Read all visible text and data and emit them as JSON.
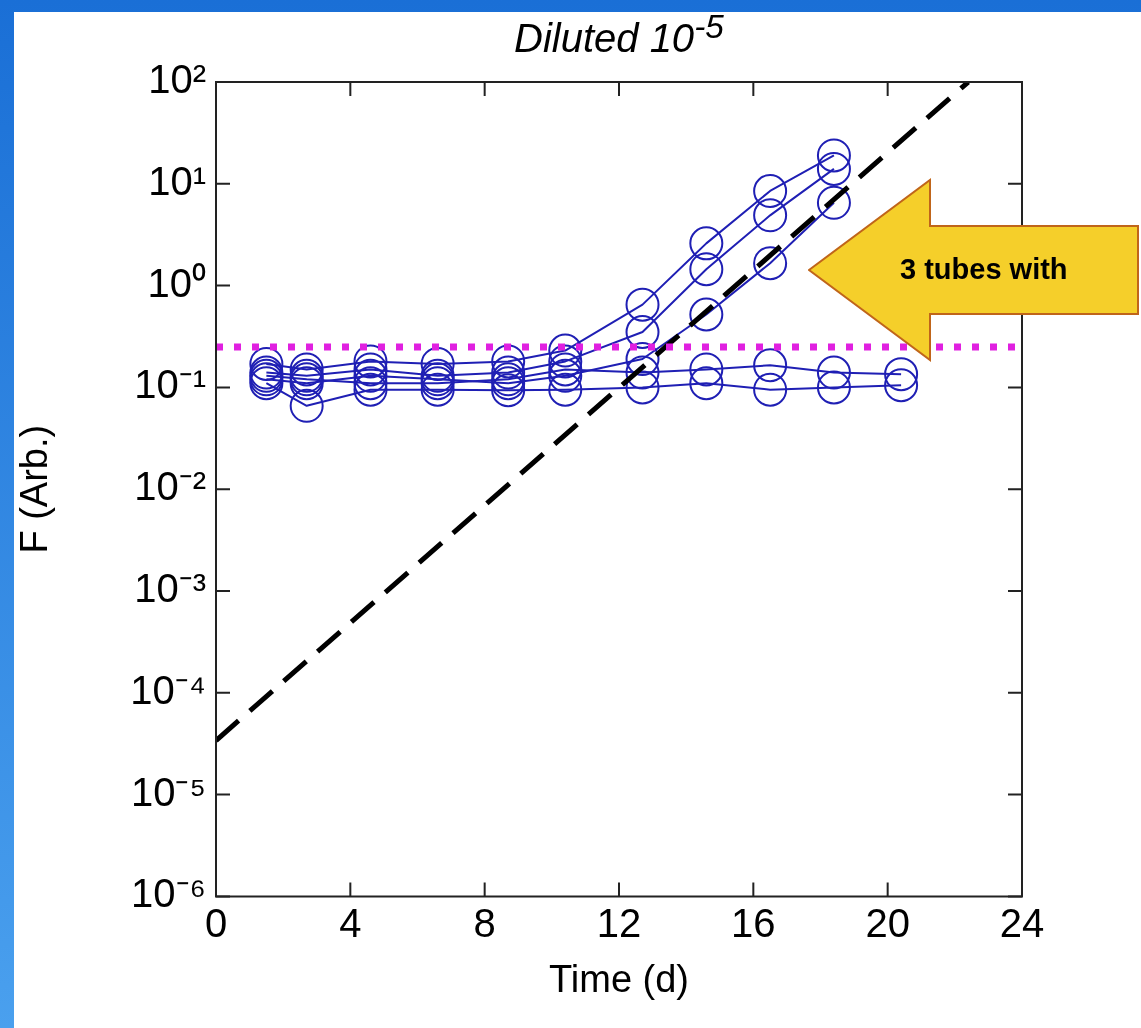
{
  "chart_data": {
    "type": "line",
    "title": "Diluted 10$^{-5}$",
    "xlabel": "Time (d)",
    "ylabel": "F (Arb.)",
    "x": [
      1.5,
      2.7,
      4.6,
      6.6,
      8.7,
      10.4,
      12.7,
      14.6,
      16.5,
      18.4,
      20.4
    ],
    "series": [
      {
        "color": "#1f1fb4",
        "values": [
          0.17,
          0.15,
          0.18,
          0.17,
          0.18,
          0.23,
          0.65,
          2.6,
          8.5,
          19,
          null
        ]
      },
      {
        "color": "#1f1fb4",
        "values": [
          0.14,
          0.13,
          0.15,
          0.13,
          0.14,
          0.18,
          0.35,
          1.45,
          4.9,
          14,
          null
        ]
      },
      {
        "color": "#1f1fb4",
        "values": [
          0.12,
          0.11,
          0.13,
          0.12,
          0.11,
          0.13,
          0.19,
          0.52,
          1.66,
          6.5,
          null
        ]
      },
      {
        "color": "#1f1fb4",
        "values": [
          0.13,
          0.12,
          0.11,
          0.11,
          0.12,
          0.15,
          0.14,
          0.15,
          0.165,
          0.14,
          0.135
        ]
      },
      {
        "color": "#1f1fb4",
        "values": [
          0.11,
          0.066,
          0.095,
          0.095,
          0.094,
          0.095,
          0.1,
          0.11,
          0.095,
          0.1,
          0.105
        ]
      },
      {
        "type": "line",
        "x": [
          0,
          22.4
        ],
        "values": [
          3.4e-05,
          100
        ],
        "color": "#000000",
        "line_style": "dashed",
        "marker": "none"
      }
    ],
    "marker": "circle",
    "line_style": "solid",
    "log": "y",
    "xlim": [
      0,
      24
    ],
    "xticks": [
      0,
      4,
      8,
      12,
      16,
      20,
      24
    ],
    "ylim": [
      1e-06,
      100
    ],
    "yticks": [
      {
        "value": 1e-06,
        "label": "10⁻⁶"
      },
      {
        "value": 1e-05,
        "label": "10⁻⁵"
      },
      {
        "value": 0.0001,
        "label": "10⁻⁴"
      },
      {
        "value": 0.001,
        "label": "10⁻³"
      },
      {
        "value": 0.01,
        "label": "10⁻²"
      },
      {
        "value": 0.1,
        "label": "10⁻¹"
      },
      {
        "value": 1,
        "label": "10⁰"
      },
      {
        "value": 10,
        "label": "10¹"
      },
      {
        "value": 100,
        "label": "10²"
      }
    ],
    "ref_lines": [
      {
        "axis": "y",
        "value": 0.25,
        "color": "#e020e0",
        "line_style": "dotted"
      }
    ],
    "annotations": [
      "3 tubes with"
    ]
  }
}
